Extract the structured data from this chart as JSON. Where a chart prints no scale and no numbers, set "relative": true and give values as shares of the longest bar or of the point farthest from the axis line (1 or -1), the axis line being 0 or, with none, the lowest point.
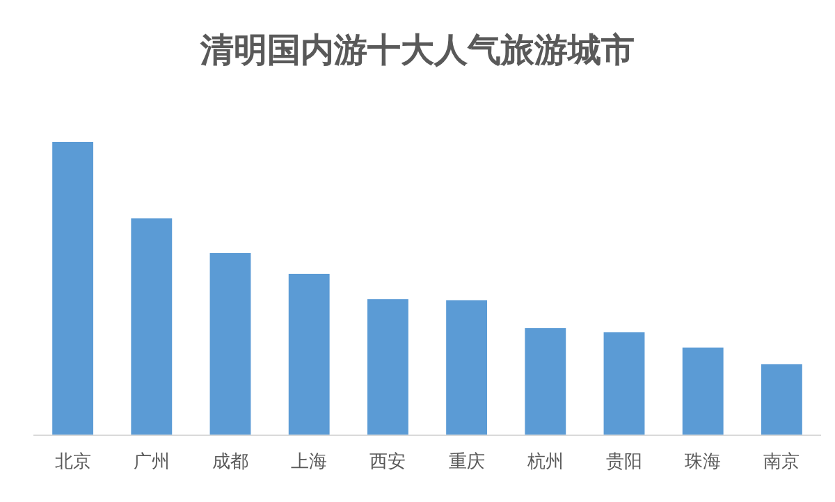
{
  "chart_data": {
    "type": "bar",
    "title": "清明国内游十大人气旅游城市",
    "categories": [
      "北京",
      "广州",
      "成都",
      "上海",
      "西安",
      "重庆",
      "杭州",
      "贵阳",
      "珠海",
      "南京"
    ],
    "values": [
      1,
      0.739,
      0.621,
      0.55,
      0.464,
      0.46,
      0.365,
      0.351,
      0.299,
      0.242
    ],
    "color": "#5b9bd5",
    "relative": true
  }
}
